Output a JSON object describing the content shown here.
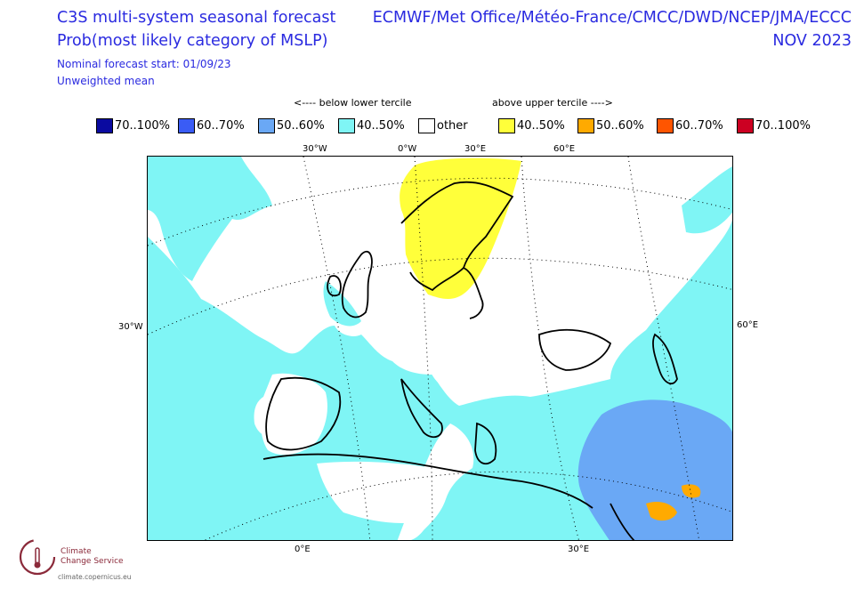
{
  "header": {
    "title_line1": "C3S multi-system seasonal forecast",
    "title_line2": "Prob(most likely category of MSLP)",
    "start": "Nominal forecast start: 01/09/23",
    "method": "Unweighted mean",
    "centres": "ECMWF/Met Office/Météo-France/CMCC/DWD/NCEP/JMA/ECCC",
    "month": "NOV 2023"
  },
  "legend": {
    "below_label": "<---- below lower tercile",
    "above_label": "above upper tercile ---->",
    "items": [
      {
        "label": "70..100%",
        "color": "#0a0aa0"
      },
      {
        "label": "60..70%",
        "color": "#3a5cf5"
      },
      {
        "label": "50..60%",
        "color": "#6aa8f5"
      },
      {
        "label": "40..50%",
        "color": "#7ff5f5"
      },
      {
        "label": "other",
        "color": "#ffffff"
      },
      {
        "label": "40..50%",
        "color": "#ffff3a"
      },
      {
        "label": "50..60%",
        "color": "#ffaa00"
      },
      {
        "label": "60..70%",
        "color": "#ff5500"
      },
      {
        "label": "70..100%",
        "color": "#cc0022"
      }
    ]
  },
  "map": {
    "top_labels": [
      "30°W",
      "0°W",
      "30°E",
      "60°E"
    ],
    "left_label": "30°W",
    "right_label": "60°E",
    "bottom_labels": [
      "0°E",
      "30°E"
    ]
  },
  "logo": {
    "line1": "Climate",
    "line2": "Change Service",
    "url": "climate.copernicus.eu",
    "color": "#8b2a3a"
  }
}
